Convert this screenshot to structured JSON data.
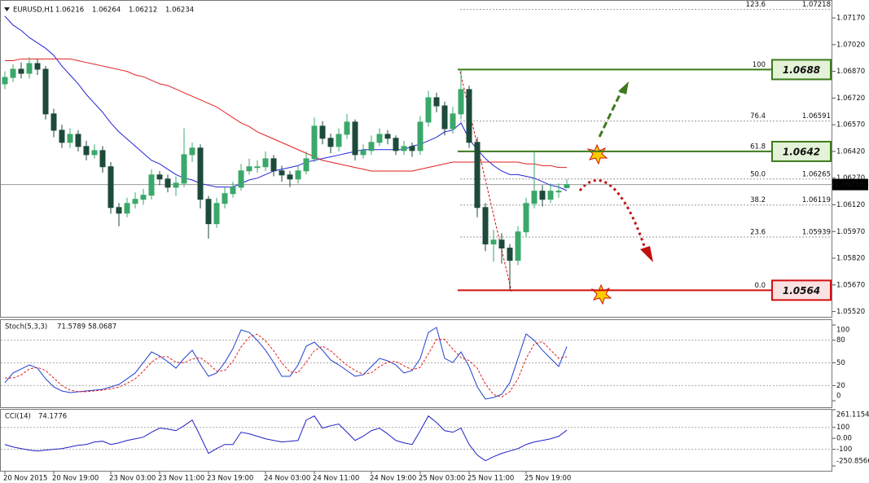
{
  "chart_data": [
    {
      "type": "candlestick",
      "title": "EURUSD,H1",
      "categories": [
        "20 Nov 2015",
        null,
        null,
        null,
        null,
        null,
        "20 Nov 19:00",
        null,
        null,
        null,
        null,
        null,
        null,
        "23 Nov 03:00",
        null,
        null,
        null,
        null,
        null,
        "23 Nov 11:00",
        null,
        null,
        null,
        null,
        null,
        "23 Nov 19:00",
        null,
        null,
        null,
        null,
        null,
        null,
        "24 Nov 03:00",
        null,
        null,
        null,
        null,
        null,
        "24 Nov 11:00",
        null,
        null,
        null,
        null,
        null,
        null,
        "24 Nov 19:00",
        null,
        null,
        null,
        null,
        null,
        "25 Nov 03:00",
        null,
        null,
        null,
        null,
        null,
        "25 Nov 11:00",
        null,
        null,
        null,
        null,
        null,
        null,
        "25 Nov 19:00",
        null,
        null,
        null,
        null,
        null
      ],
      "open": [
        1.068,
        1.06836,
        1.06882,
        1.06859,
        1.06914,
        1.06882,
        1.06631,
        1.06539,
        1.06471,
        1.06516,
        1.06448,
        1.06402,
        1.06425,
        1.06334,
        1.06105,
        1.06073,
        1.06128,
        1.06151,
        1.06174,
        1.06288,
        1.06265,
        1.06219,
        1.06242,
        1.06402,
        1.06439,
        1.06151,
        1.06014,
        1.06128,
        1.06183,
        1.06219,
        1.06311,
        1.06334,
        1.06334,
        1.06379,
        1.06311,
        1.06288,
        1.06265,
        1.06311,
        1.06379,
        1.06562,
        1.06494,
        1.06448,
        1.06516,
        1.06585,
        1.06402,
        1.06425,
        1.06471,
        1.06516,
        1.06494,
        1.06425,
        1.06448,
        1.06425,
        1.06585,
        1.06722,
        1.06676,
        1.06548,
        1.06631,
        1.06768,
        1.06471,
        1.06105,
        1.059,
        1.05922,
        1.05877,
        1.05808,
        1.05968,
        1.06128,
        1.06197,
        1.06151,
        1.06197,
        1.06216
      ],
      "high": [
        1.0687,
        1.0691,
        1.0692,
        1.0695,
        1.0694,
        1.069,
        1.0666,
        1.0657,
        1.0655,
        1.0654,
        1.0648,
        1.0646,
        1.0645,
        1.0636,
        1.0613,
        1.0616,
        1.0619,
        1.0621,
        1.0632,
        1.0631,
        1.0629,
        1.0628,
        1.0655,
        1.0647,
        1.0646,
        1.0617,
        1.0616,
        1.0622,
        1.0625,
        1.0635,
        1.0638,
        1.0637,
        1.0642,
        1.064,
        1.0634,
        1.0631,
        1.0634,
        1.0642,
        1.0661,
        1.0659,
        1.0652,
        1.0655,
        1.0663,
        1.066,
        1.0646,
        1.0651,
        1.0655,
        1.0654,
        1.0651,
        1.0648,
        1.0647,
        1.0662,
        1.0676,
        1.0675,
        1.067,
        1.0667,
        1.0688,
        1.0679,
        1.065,
        1.0613,
        1.0598,
        1.0596,
        1.059,
        1.06,
        1.0616,
        1.0642,
        1.0623,
        1.0624,
        1.0624,
        1.06264
      ],
      "low": [
        1.0677,
        1.0681,
        1.0683,
        1.0683,
        1.0685,
        1.066,
        1.065,
        1.0644,
        1.0644,
        1.0642,
        1.0637,
        1.0638,
        1.063,
        1.0607,
        1.06,
        1.0605,
        1.061,
        1.0612,
        1.0615,
        1.0623,
        1.0619,
        1.0617,
        1.0622,
        1.0636,
        1.061,
        1.0593,
        1.0599,
        1.061,
        1.0616,
        1.062,
        1.0629,
        1.063,
        1.0631,
        1.0628,
        1.0625,
        1.0622,
        1.0624,
        1.0629,
        1.0636,
        1.0646,
        1.0641,
        1.0642,
        1.0649,
        1.0637,
        1.0638,
        1.064,
        1.0645,
        1.0646,
        1.064,
        1.064,
        1.0639,
        1.064,
        1.0656,
        1.0664,
        1.0651,
        1.0652,
        1.066,
        1.0644,
        1.0605,
        1.0586,
        1.058,
        1.0579,
        1.0564,
        1.0578,
        1.0594,
        1.061,
        1.0611,
        1.0613,
        1.0616,
        1.06212
      ],
      "close": [
        1.06836,
        1.06882,
        1.06859,
        1.06914,
        1.06882,
        1.06631,
        1.06539,
        1.06471,
        1.06516,
        1.06448,
        1.06402,
        1.06425,
        1.06334,
        1.06105,
        1.06073,
        1.06128,
        1.06151,
        1.06174,
        1.06288,
        1.06265,
        1.06219,
        1.06242,
        1.06402,
        1.06439,
        1.06151,
        1.06014,
        1.06128,
        1.06183,
        1.06219,
        1.06311,
        1.06334,
        1.06334,
        1.06379,
        1.06311,
        1.06288,
        1.06265,
        1.06311,
        1.06379,
        1.06562,
        1.06494,
        1.06448,
        1.06516,
        1.06585,
        1.06402,
        1.06425,
        1.06471,
        1.06516,
        1.06494,
        1.06425,
        1.06448,
        1.06425,
        1.06585,
        1.06722,
        1.06676,
        1.06548,
        1.06631,
        1.06768,
        1.06471,
        1.06105,
        1.059,
        1.05922,
        1.05877,
        1.05808,
        1.05968,
        1.06128,
        1.06197,
        1.06151,
        1.06197,
        1.06197,
        1.06234
      ],
      "up_color": "#3aa86a",
      "down_color": "#1d4a3a",
      "overlays": [
        {
          "color": "#2323d8",
          "values": [
            1.0718,
            1.0713,
            1.071,
            1.0706,
            1.0703,
            1.07,
            1.0696,
            1.069,
            1.0685,
            1.068,
            1.0674,
            1.0669,
            1.0664,
            1.0658,
            1.0653,
            1.0649,
            1.0645,
            1.0641,
            1.0637,
            1.0635,
            1.0632,
            1.0629,
            1.0627,
            1.0626,
            1.0624,
            1.0623,
            1.0622,
            1.0622,
            1.0622,
            1.0624,
            1.0626,
            1.0627,
            1.0629,
            1.0631,
            1.0632,
            1.0633,
            1.0634,
            1.0636,
            1.0637,
            1.0638,
            1.0639,
            1.064,
            1.0641,
            1.0642,
            1.0643,
            1.0643,
            1.0643,
            1.0643,
            1.0643,
            1.0643,
            1.0645,
            1.0646,
            1.0648,
            1.065,
            1.0653,
            1.0654,
            1.0658,
            1.0649,
            1.0643,
            1.0638,
            1.0634,
            1.0631,
            1.0629,
            1.0629,
            1.0628,
            1.0627,
            1.0625,
            1.0623,
            1.0622,
            1.062
          ]
        },
        {
          "color": "#e02020",
          "values": [
            1.0693,
            1.0693,
            1.0694,
            1.0694,
            1.0694,
            1.0694,
            1.0694,
            1.0694,
            1.0694,
            1.0693,
            1.0692,
            1.0691,
            1.069,
            1.0689,
            1.0688,
            1.0687,
            1.0685,
            1.0684,
            1.0682,
            1.068,
            1.0679,
            1.0677,
            1.0675,
            1.0673,
            1.0671,
            1.0669,
            1.0667,
            1.0664,
            1.0661,
            1.0658,
            1.0656,
            1.0653,
            1.0651,
            1.0649,
            1.0647,
            1.0645,
            1.0643,
            1.0641,
            1.0639,
            1.0637,
            1.0636,
            1.0635,
            1.0634,
            1.0633,
            1.0632,
            1.0631,
            1.0631,
            1.0631,
            1.0631,
            1.0631,
            1.0631,
            1.0632,
            1.0633,
            1.0634,
            1.0635,
            1.0636,
            1.0636,
            1.0636,
            1.0636,
            1.0636,
            1.0636,
            1.0636,
            1.0636,
            1.0636,
            1.0635,
            1.0635,
            1.0634,
            1.0634,
            1.0633,
            1.0633
          ]
        }
      ],
      "ylim": [
        1.05486,
        1.07271
      ],
      "yticks": [
        {
          "value": 1.0717,
          "label": "1.07170"
        },
        {
          "value": 1.0702,
          "label": "1.07020"
        },
        {
          "value": 1.0687,
          "label": "1.06870"
        },
        {
          "value": 1.0672,
          "label": "1.06720"
        },
        {
          "value": 1.0657,
          "label": "1.06570"
        },
        {
          "value": 1.0642,
          "label": "1.06420"
        },
        {
          "value": 1.0627,
          "label": "1.06270"
        },
        {
          "value": 1.0612,
          "label": "1.06120"
        },
        {
          "value": 1.0597,
          "label": "1.05970"
        },
        {
          "value": 1.0582,
          "label": "1.05820"
        },
        {
          "value": 1.0567,
          "label": "1.05670"
        },
        {
          "value": 1.0552,
          "label": "1.05520"
        }
      ],
      "fib_levels": [
        {
          "label": "123.6",
          "value": 1.07218
        },
        {
          "label": "100",
          "value": 1.0688,
          "boxed": true,
          "color": "#3c7a1c",
          "fill": "#e4f2d8"
        },
        {
          "label": "76.4",
          "value": 1.06591
        },
        {
          "label": "61.8",
          "value": 1.0642,
          "boxed": true,
          "color": "#3c7a1c",
          "fill": "#e4f2d8"
        },
        {
          "label": "50.0",
          "value": 1.06265
        },
        {
          "label": "38.2",
          "value": 1.06119
        },
        {
          "label": "23.6",
          "value": 1.05939
        },
        {
          "label": "0.0",
          "value": 1.0564,
          "boxed": true,
          "color": "#d01010",
          "fill": "#fbe2e2"
        }
      ]
    },
    {
      "type": "line",
      "title": "Stoch(5,3,3)",
      "series": [
        {
          "color": "#2040d0",
          "values": [
            23.7,
            36.6,
            41.9,
            47.3,
            43.0,
            29.0,
            18.3,
            12.9,
            10.8,
            11.8,
            12.9,
            14.0,
            15.1,
            18.3,
            21.5,
            29.0,
            36.6,
            50.5,
            64.5,
            59.1,
            51.6,
            43.0,
            55.9,
            66.7,
            48.4,
            32.3,
            36.6,
            50.5,
            68.8,
            93.5,
            90.3,
            79.6,
            66.7,
            50.5,
            32.3,
            32.3,
            47.3,
            72.0,
            77.4,
            66.7,
            53.8,
            47.3,
            39.8,
            32.3,
            34.4,
            45.2,
            55.9,
            52.7,
            47.3,
            36.6,
            39.8,
            55.9,
            90.3,
            96.8,
            55.9,
            50.5,
            64.5,
            45.2,
            18.3,
            2.2,
            4.3,
            8.6,
            23.7,
            55.9,
            88.2,
            79.6,
            66.7,
            55.9,
            45.2,
            71.5789
          ]
        },
        {
          "color": "#e02020",
          "dash": true,
          "values": [
            30,
            30,
            34,
            42,
            44,
            40,
            30,
            20,
            14,
            12,
            12,
            13,
            14,
            16,
            18,
            23,
            29,
            39,
            51,
            58,
            58,
            51,
            50,
            55,
            57,
            49,
            39,
            40,
            52,
            71,
            84,
            88,
            79,
            66,
            50,
            38,
            37,
            51,
            66,
            72,
            66,
            56,
            47,
            40,
            35,
            37,
            45,
            51,
            52,
            46,
            41,
            44,
            62,
            81,
            81,
            68,
            57,
            53,
            43,
            22,
            8,
            5,
            12,
            29,
            56,
            75,
            78,
            67,
            56,
            58.0687
          ]
        }
      ],
      "ylim": [
        0,
        100
      ],
      "yticks": [
        0,
        20,
        50,
        80,
        100
      ],
      "levels": [
        80,
        50,
        20
      ]
    },
    {
      "type": "line",
      "title": "CCI(14)",
      "series": [
        {
          "color": "#2020c8",
          "values": [
            -56,
            -78,
            -93,
            -107,
            -115,
            -107,
            -100,
            -93,
            -78,
            -63,
            -56,
            -33,
            -26,
            -56,
            -41,
            -19,
            -4,
            11,
            56,
            93,
            85,
            70,
            115,
            167,
            19,
            -137,
            -93,
            -56,
            -56,
            56,
            41,
            19,
            -4,
            -19,
            -33,
            -26,
            -19,
            167,
            204,
            93,
            115,
            130,
            56,
            -19,
            19,
            70,
            93,
            41,
            -19,
            -41,
            -56,
            70,
            204,
            144,
            70,
            56,
            93,
            -56,
            -152,
            -204,
            -167,
            -137,
            -115,
            -93,
            -56,
            -33,
            -19,
            -4,
            19,
            74.1776
          ]
        }
      ],
      "ylim": [
        -250.8566,
        261.1154
      ],
      "yticks": [
        -250.8566,
        -100,
        {
          "value": 0,
          "label": "0.00"
        },
        100,
        261.1154
      ],
      "levels": [
        100,
        -100
      ]
    }
  ]
}
